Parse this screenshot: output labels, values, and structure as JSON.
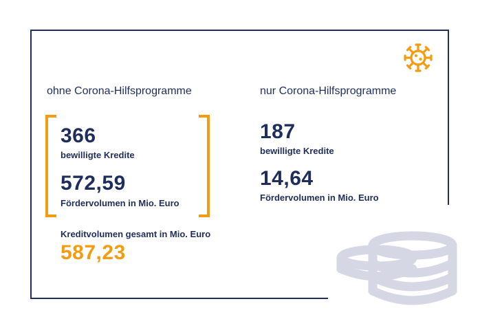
{
  "colors": {
    "navy": "#1f2d5c",
    "orange": "#f39c12",
    "coin": "#d6d7e4"
  },
  "icons": {
    "virus": "virus-icon",
    "coins": "coins-icon"
  },
  "left": {
    "heading": "ohne Corona-Hilfsprogramme",
    "loans_count": "366",
    "loans_label": "bewilligte Kredite",
    "volume": "572,59",
    "volume_label": "Fördervolumen in Mio. Euro"
  },
  "right": {
    "heading": "nur Corona-Hilfsprogramme",
    "loans_count": "187",
    "loans_label": "bewilligte Kredite",
    "volume": "14,64",
    "volume_label": "Fördervolumen in Mio. Euro"
  },
  "total": {
    "label": "Kreditvolumen gesamt in Mio. Euro",
    "value": "587,23"
  }
}
